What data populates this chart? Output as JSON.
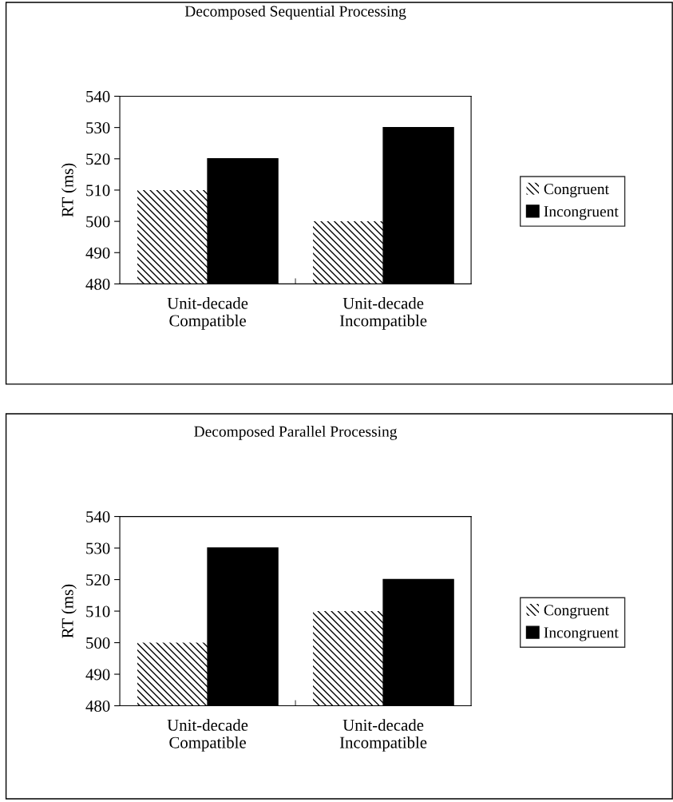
{
  "chart_data": [
    {
      "type": "bar",
      "title": "Decomposed Sequential Processing",
      "ylabel": "RT (ms)",
      "categories": [
        "Unit-decade\nCompatible",
        "Unit-decade\nIncompatible"
      ],
      "series": [
        {
          "name": "Congruent",
          "color": "#ffffff",
          "values": [
            510,
            500
          ]
        },
        {
          "name": "Incongruent",
          "color": "#000000",
          "values": [
            520,
            530
          ]
        }
      ],
      "ylim": [
        480,
        540
      ],
      "yticks": [
        480,
        490,
        500,
        510,
        520,
        530,
        540
      ],
      "grid": false,
      "legend": "right"
    },
    {
      "type": "bar",
      "title": "Decomposed Parallel Processing",
      "ylabel": "RT (ms)",
      "categories": [
        "Unit-decade\nCompatible",
        "Unit-decade\nIncompatible"
      ],
      "series": [
        {
          "name": "Congruent",
          "color": "#ffffff",
          "values": [
            500,
            510
          ]
        },
        {
          "name": "Incongruent",
          "color": "#000000",
          "values": [
            530,
            520
          ]
        }
      ],
      "ylim": [
        480,
        540
      ],
      "yticks": [
        480,
        490,
        500,
        510,
        520,
        530,
        540
      ],
      "grid": false,
      "legend": "right"
    }
  ]
}
